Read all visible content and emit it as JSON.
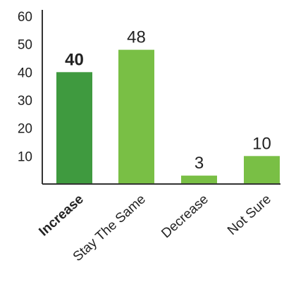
{
  "chart_data": {
    "type": "bar",
    "categories": [
      "Increase",
      "Stay The Same",
      "Decrease",
      "Not Sure"
    ],
    "values": [
      40,
      48,
      3,
      10
    ],
    "value_labels": [
      "40",
      "48",
      "3",
      "10"
    ],
    "highlight_index": 0,
    "colors": [
      "#3f9a3f",
      "#79bf45",
      "#79bf45",
      "#79bf45"
    ],
    "yticks": [
      "10",
      "20",
      "30",
      "40",
      "50",
      "60"
    ],
    "ylim": [
      0,
      60
    ],
    "grid": false,
    "legend": "none",
    "title": "",
    "xlabel": "",
    "ylabel": ""
  }
}
